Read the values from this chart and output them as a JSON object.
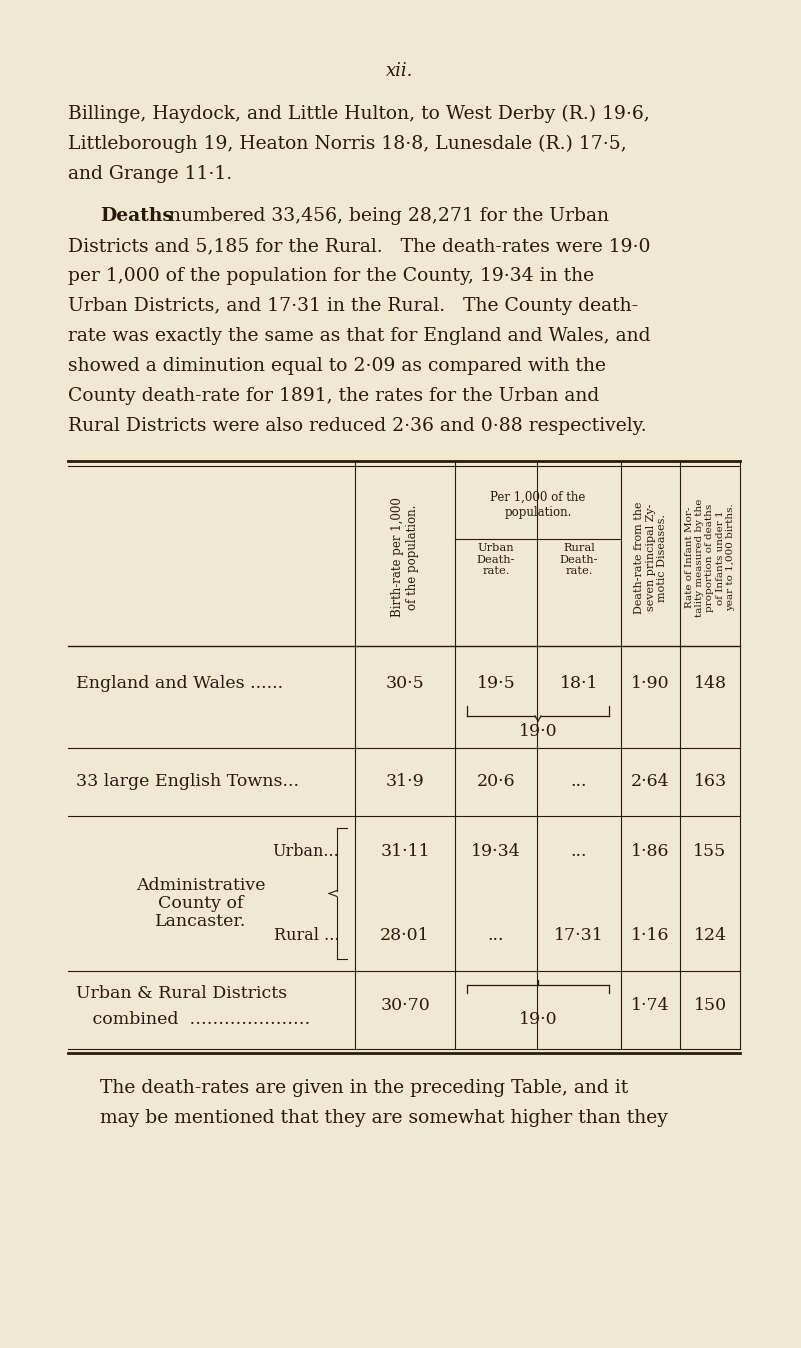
{
  "bg_color": "#f0e8d0",
  "text_color": "#2a1a0e",
  "page_number": "xii.",
  "para1_lines": [
    "Billinge, Haydock, and Little Hulton, to West Derby (R.) 19·6,",
    "Littleborough 19, Heaton Norris 18·8, Lunesdale (R.) 17·5,",
    "and Grange 11·1."
  ],
  "para2_line1_bold": "Deaths",
  "para2_line1_rest": " numbered 33,456, being 28,271 for the Urban",
  "para2_rest_lines": [
    "Districts and 5,185 for the Rural.   The death-rates were 19·0",
    "per 1,000 of the population for the County, 19·34 in the",
    "Urban Districts, and 17·31 in the Rural.   The County death-",
    "rate was exactly the same as that for England and Wales, and",
    "showed a diminution equal to 2·09 as compared with the",
    "County death-rate for 1891, the rates for the Urban and",
    "Rural Districts were also reduced 2·36 and 0·88 respectively."
  ],
  "footer_lines": [
    "The death-rates are given in the preceding Table, and it",
    "may be mentioned that they are somewhat higher than they"
  ],
  "table": {
    "col_header_birth": "Birth-rate per 1,000\nof the population.",
    "col_header_per1000": "Per 1,000 of the\npopulation.",
    "col_header_urban_sub": "Urban\nDeath-\nrate.",
    "col_header_rural_sub": "Rural\nDeath-\nrate.",
    "col_header_zymotic": "Death-rate from the\nseven principal Zy-\nmotic Diseases.",
    "col_header_infant": "Rate of Infant Mor-\ntality measured by the\nproportion of deaths\nof Infants under 1\nyear to 1,000 births.",
    "rows": [
      {
        "type": "simple",
        "label": "England and Wales ......",
        "birth": "30·5",
        "urban": "19·5",
        "rural": "18·1",
        "zymotic": "1·90",
        "infant": "148",
        "under_brace": "19·0"
      },
      {
        "type": "simple",
        "label": "33 large English Towns...",
        "birth": "31·9",
        "urban": "20·6",
        "rural": "...",
        "zymotic": "2·64",
        "infant": "163",
        "under_brace": null
      },
      {
        "type": "split",
        "label_main": "Administrative\n  County of\n  Lancaster.",
        "label_urban": "Urban...",
        "label_rural": "Rural ...",
        "birth_urban": "31·11",
        "birth_rural": "28·01",
        "urban_urban": "19·34",
        "urban_rural": "...",
        "rural_urban": "...",
        "rural_rural": "17·31",
        "zymotic_urban": "1·86",
        "zymotic_rural": "1·16",
        "infant_urban": "155",
        "infant_rural": "124"
      },
      {
        "type": "combined",
        "label1": "Urban & Rural Districts",
        "label2": "   combined               ",
        "birth": "30·70",
        "combined": "19·0",
        "zymotic": "1·74",
        "infant": "150",
        "over_brace": true
      }
    ]
  }
}
